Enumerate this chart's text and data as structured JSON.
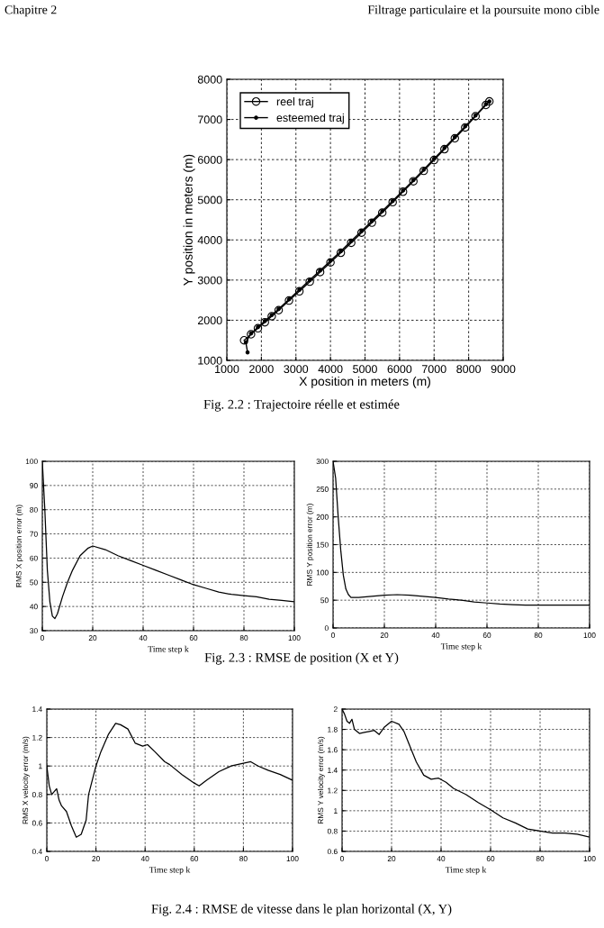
{
  "chart_data": [
    {
      "type": "line",
      "xlabel": "X position in meters (m)",
      "ylabel": "Y position in meters (m)",
      "xlim": [
        1000,
        9000
      ],
      "ylim": [
        1000,
        8000
      ],
      "xticks": [
        1000,
        2000,
        3000,
        4000,
        5000,
        6000,
        7000,
        8000,
        9000
      ],
      "yticks": [
        1000,
        2000,
        3000,
        4000,
        5000,
        6000,
        7000,
        8000
      ],
      "grid": true,
      "legend": "top left",
      "annotations": [
        "Chapitre 2",
        "Filtrage particulaire et la poursuite mono cible",
        "Fig. 2.2 : Trajectoire réelle et estimée"
      ],
      "series": [
        {
          "name": "reel traj",
          "color": "#000000",
          "marker": "circle",
          "x": [
            1500,
            1700,
            1900,
            2100,
            2300,
            2500,
            2800,
            3100,
            3400,
            3700,
            4000,
            4300,
            4600,
            4900,
            5200,
            5500,
            5800,
            6100,
            6400,
            6700,
            7000,
            7300,
            7600,
            7900,
            8200,
            8500,
            8600
          ],
          "values": [
            1500,
            1650,
            1800,
            1950,
            2100,
            2250,
            2490,
            2720,
            2960,
            3200,
            3440,
            3680,
            3930,
            4180,
            4430,
            4680,
            4940,
            5200,
            5460,
            5720,
            5990,
            6260,
            6530,
            6800,
            7080,
            7360,
            7450
          ]
        },
        {
          "name": "esteemed traj",
          "color": "#000000",
          "marker": "point",
          "x": [
            1600,
            1550,
            1700,
            1900,
            2100,
            2300,
            2500,
            2800,
            3100,
            3400,
            3700,
            4000,
            4300,
            4600,
            4900,
            5200,
            5500,
            5800,
            6100,
            6400,
            6700,
            7000,
            7300,
            7600,
            7900,
            8200,
            8500,
            8600
          ],
          "values": [
            1200,
            1450,
            1670,
            1830,
            1980,
            2130,
            2280,
            2520,
            2760,
            3000,
            3240,
            3480,
            3720,
            3970,
            4220,
            4470,
            4720,
            4970,
            5230,
            5490,
            5750,
            6020,
            6290,
            6560,
            6830,
            7100,
            7380,
            7450
          ]
        }
      ]
    },
    {
      "type": "line",
      "xlabel": "Time step k",
      "ylabel": "RMS X position error (m)",
      "xlim": [
        0,
        100
      ],
      "ylim": [
        30,
        100
      ],
      "xticks": [
        0,
        20,
        40,
        60,
        80,
        100
      ],
      "yticks": [
        30,
        40,
        50,
        60,
        70,
        80,
        90,
        100
      ],
      "grid": true,
      "annotations": [
        "Fig. 2.3 : RMSE de position (X et Y)"
      ],
      "series": [
        {
          "color": "#000000",
          "x": [
            0,
            1,
            2,
            3,
            4,
            5,
            6,
            8,
            10,
            12,
            15,
            18,
            20,
            25,
            30,
            35,
            40,
            45,
            50,
            55,
            60,
            65,
            70,
            75,
            80,
            85,
            90,
            95,
            100
          ],
          "values": [
            100,
            80,
            55,
            42,
            36,
            35,
            37,
            44,
            50,
            55,
            61,
            64,
            65,
            63.5,
            61,
            59,
            57,
            55,
            53,
            51,
            49,
            47.5,
            46,
            45,
            44.5,
            44,
            43,
            42.5,
            42
          ]
        }
      ]
    },
    {
      "type": "line",
      "xlabel": "Time step k",
      "ylabel": "RMS Y position error (m)",
      "xlim": [
        0,
        100
      ],
      "ylim": [
        0,
        300
      ],
      "xticks": [
        0,
        20,
        40,
        60,
        80,
        100
      ],
      "yticks": [
        0,
        50,
        100,
        150,
        200,
        250,
        300
      ],
      "grid": true,
      "series": [
        {
          "color": "#000000",
          "x": [
            0,
            1,
            2,
            3,
            4,
            5,
            6,
            7,
            10,
            15,
            20,
            25,
            30,
            35,
            40,
            45,
            50,
            55,
            60,
            65,
            70,
            75,
            80,
            90,
            100
          ],
          "values": [
            300,
            270,
            200,
            140,
            95,
            70,
            60,
            55,
            55,
            57,
            59,
            60,
            59,
            57,
            55,
            52,
            50,
            47,
            45,
            43,
            42,
            41,
            41,
            41,
            41
          ]
        }
      ]
    },
    {
      "type": "line",
      "xlabel": "Time step k",
      "ylabel": "RMS X velocity error (m/s)",
      "xlim": [
        0,
        100
      ],
      "ylim": [
        0.4,
        1.4
      ],
      "xticks": [
        0,
        20,
        40,
        60,
        80,
        100
      ],
      "yticks": [
        0.4,
        0.6,
        0.8,
        1,
        1.2,
        1.4
      ],
      "grid": true,
      "annotations": [
        "Fig. 2.4 : RMSE de vitesse dans le plan horizontal (X, Y)"
      ],
      "series": [
        {
          "color": "#000000",
          "x": [
            0,
            1,
            2,
            3,
            4,
            5,
            6,
            8,
            10,
            12,
            14,
            16,
            17,
            20,
            22,
            25,
            28,
            30,
            33,
            36,
            39,
            41,
            44,
            48,
            50,
            55,
            60,
            62,
            65,
            70,
            75,
            80,
            83,
            86,
            90,
            95,
            100
          ],
          "values": [
            1.0,
            0.86,
            0.8,
            0.82,
            0.84,
            0.76,
            0.72,
            0.68,
            0.58,
            0.5,
            0.52,
            0.62,
            0.8,
            1.0,
            1.1,
            1.22,
            1.3,
            1.29,
            1.26,
            1.16,
            1.14,
            1.15,
            1.1,
            1.03,
            1.01,
            0.94,
            0.88,
            0.86,
            0.9,
            0.96,
            1.0,
            1.02,
            1.03,
            1.0,
            0.97,
            0.94,
            0.9
          ]
        }
      ]
    },
    {
      "type": "line",
      "xlabel": "Time step k",
      "ylabel": "RMS Y velocity error (m/s)",
      "xlim": [
        0,
        100
      ],
      "ylim": [
        0.6,
        2
      ],
      "xticks": [
        0,
        20,
        40,
        60,
        80,
        100
      ],
      "yticks": [
        0.6,
        0.8,
        1,
        1.2,
        1.4,
        1.6,
        1.8,
        2
      ],
      "grid": true,
      "series": [
        {
          "color": "#000000",
          "x": [
            0,
            1,
            2,
            3,
            4,
            5,
            7,
            9,
            11,
            13,
            15,
            17,
            20,
            23,
            25,
            28,
            30,
            33,
            36,
            39,
            42,
            45,
            50,
            55,
            60,
            65,
            70,
            75,
            80,
            85,
            90,
            95,
            100
          ],
          "values": [
            2.0,
            1.95,
            1.88,
            1.86,
            1.9,
            1.8,
            1.76,
            1.77,
            1.78,
            1.79,
            1.75,
            1.82,
            1.88,
            1.85,
            1.78,
            1.6,
            1.48,
            1.35,
            1.31,
            1.32,
            1.28,
            1.22,
            1.16,
            1.08,
            1.01,
            0.93,
            0.88,
            0.82,
            0.8,
            0.78,
            0.78,
            0.77,
            0.74
          ]
        }
      ]
    }
  ]
}
